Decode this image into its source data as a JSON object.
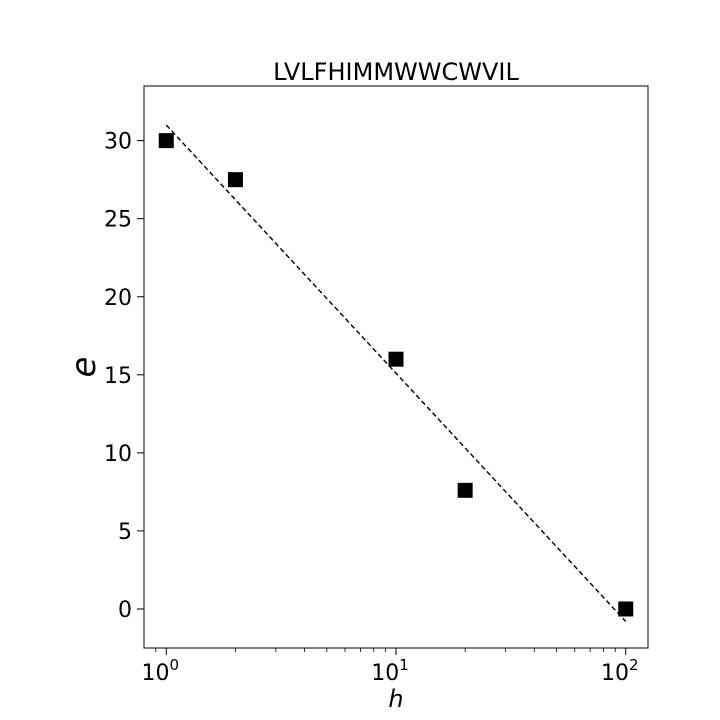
{
  "chart_data": {
    "type": "scatter",
    "title": "LVLFHIMMWWCWVIL",
    "xlabel": "h",
    "ylabel": "e",
    "xscale": "log",
    "xlim": [
      0.8,
      125
    ],
    "ylim": [
      -2.5,
      33.5
    ],
    "grid": false,
    "x_ticks": [
      {
        "value": 1,
        "base": "10",
        "exp": "0"
      },
      {
        "value": 10,
        "base": "10",
        "exp": "1"
      },
      {
        "value": 100,
        "base": "10",
        "exp": "2"
      }
    ],
    "y_ticks": [
      0,
      5,
      10,
      15,
      20,
      25,
      30
    ],
    "series": [
      {
        "marker": "square",
        "color": "#000000",
        "points": [
          {
            "x": 1,
            "y": 30.0
          },
          {
            "x": 2,
            "y": 27.5
          },
          {
            "x": 10,
            "y": 16.0
          },
          {
            "x": 20,
            "y": 7.6
          },
          {
            "x": 100,
            "y": 0.0
          }
        ]
      }
    ],
    "fit_line": {
      "style": "dashed",
      "color": "#000000",
      "points": [
        {
          "x": 1,
          "y": 31.0
        },
        {
          "x": 100,
          "y": -0.8
        }
      ]
    }
  }
}
